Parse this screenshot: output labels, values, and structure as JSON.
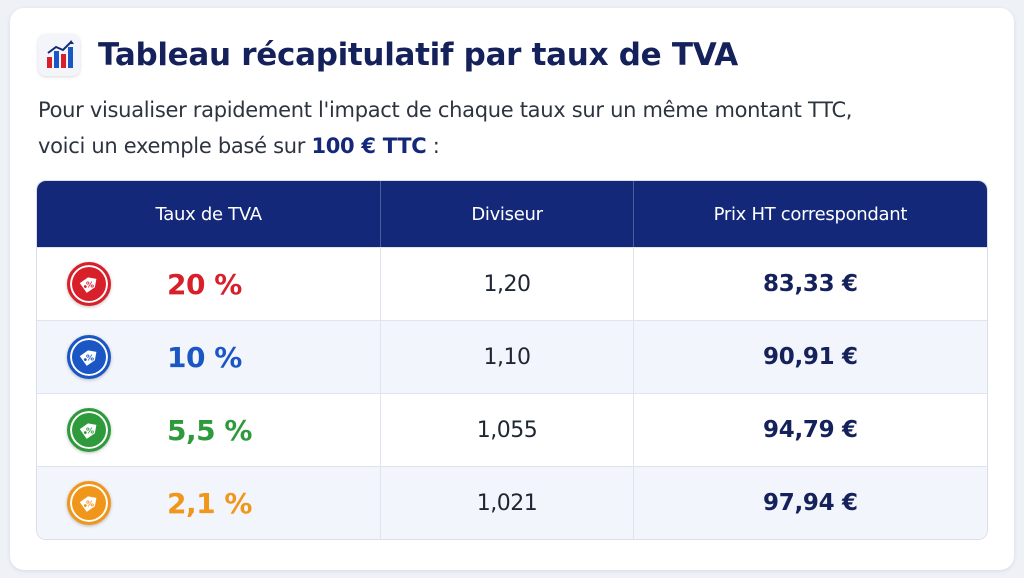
{
  "title": "Tableau récapitulatif par taux de TVA",
  "intro": {
    "line1": "Pour visualiser rapidement l'impact de chaque taux sur un même montant TTC,",
    "line2_prefix": "voici un exemple basé sur ",
    "line2_highlight": "100 € TTC",
    "line2_suffix": " :"
  },
  "table": {
    "headers": [
      "Taux de TVA",
      "Diviseur",
      "Prix HT correspondant"
    ],
    "rows": [
      {
        "rate": "20 %",
        "divisor": "1,20",
        "ht": "83,33 €",
        "color": "#d8202b",
        "icon": "percent-tag-icon"
      },
      {
        "rate": "10 %",
        "divisor": "1,10",
        "ht": "90,91 €",
        "color": "#1a56c4",
        "icon": "percent-tag-icon"
      },
      {
        "rate": "5,5 %",
        "divisor": "1,055",
        "ht": "94,79 €",
        "color": "#2e9a3c",
        "icon": "percent-tag-icon"
      },
      {
        "rate": "2,1 %",
        "divisor": "1,021",
        "ht": "97,94 €",
        "color": "#f0961a",
        "icon": "percent-tag-icon"
      }
    ]
  },
  "colors": {
    "header_bg": "#14287a",
    "title": "#14215b",
    "highlight": "#14287a"
  }
}
